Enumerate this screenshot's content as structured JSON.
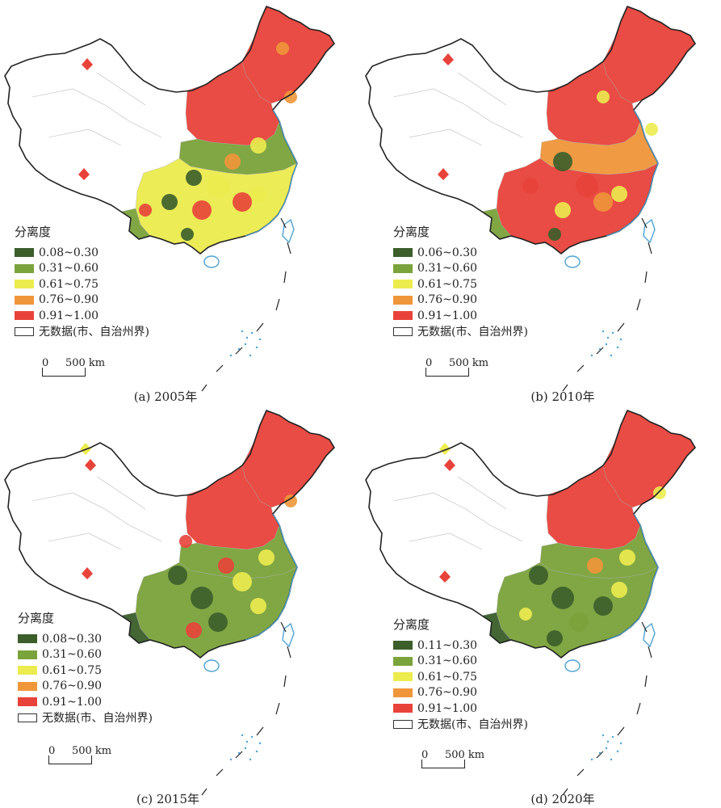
{
  "colors": {
    "c1": "#3b5e2b",
    "c2": "#7ba33b",
    "c3": "#ecec4f",
    "c4": "#f0963a",
    "c5": "#e8433a",
    "nodata": "#ffffff",
    "sea": "#4da3d4"
  },
  "legend_title": "分离度",
  "nodata_label": "无数据(市、自治州界)",
  "scale": {
    "zero": "0",
    "label": "500 km"
  },
  "panels": [
    {
      "caption": "(a) 2005年",
      "classes": [
        "0.08~0.30",
        "0.31~0.60",
        "0.61~0.75",
        "0.76~0.90",
        "0.91~1.00"
      ]
    },
    {
      "caption": "(b) 2010年",
      "classes": [
        "0.06~0.30",
        "0.31~0.60",
        "0.61~0.75",
        "0.76~0.90",
        "0.91~1.00"
      ]
    },
    {
      "caption": "(c) 2015年",
      "classes": [
        "0.08~0.30",
        "0.31~0.60",
        "0.61~0.75",
        "0.76~0.90",
        "0.91~1.00"
      ]
    },
    {
      "caption": "(d) 2020年",
      "classes": [
        "0.11~0.30",
        "0.31~0.60",
        "0.61~0.75",
        "0.76~0.90",
        "0.91~1.00"
      ]
    }
  ]
}
